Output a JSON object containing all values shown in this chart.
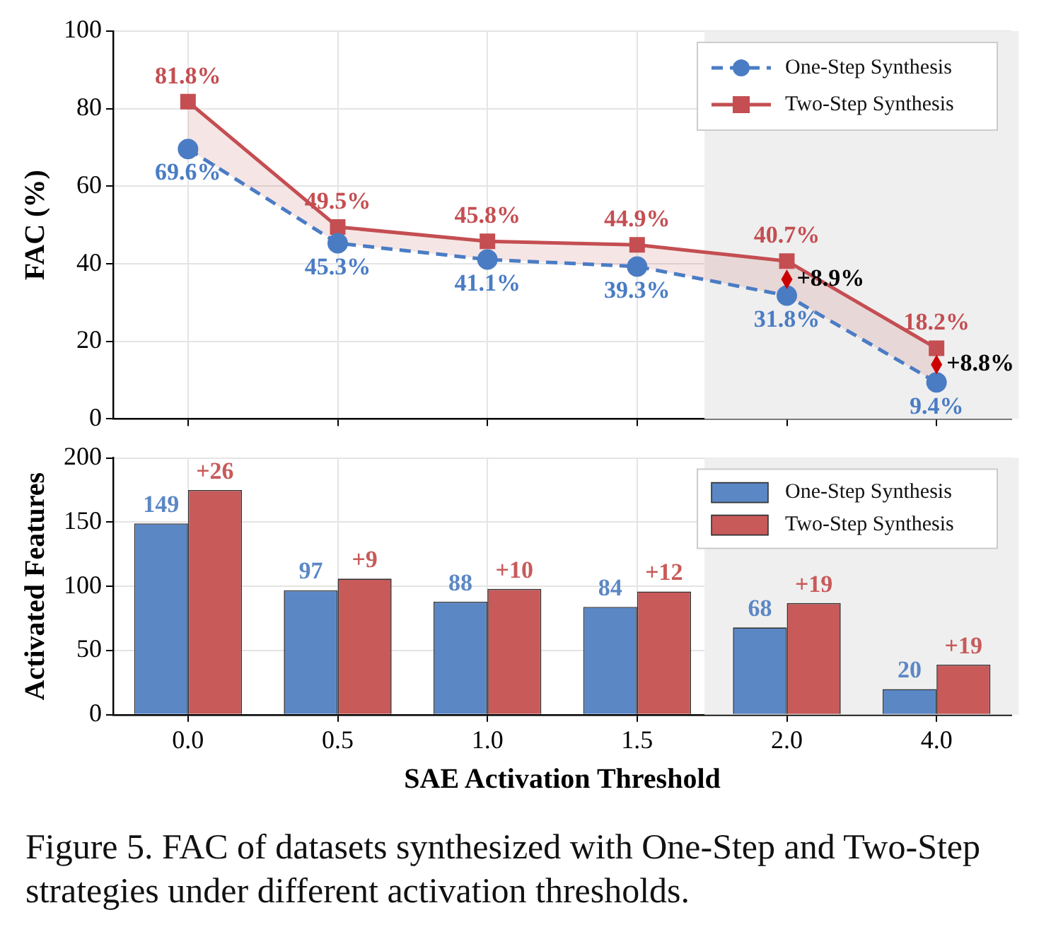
{
  "chart_data": [
    {
      "type": "line",
      "ylabel": "FAC (%)",
      "categories": [
        "0.0",
        "0.5",
        "1.0",
        "1.5",
        "2.0",
        "4.0"
      ],
      "series": [
        {
          "name": "One-Step Synthesis",
          "color": "#4a7cc4",
          "values": [
            69.6,
            45.3,
            41.1,
            39.3,
            31.8,
            9.4
          ],
          "value_labels": [
            "69.6%",
            "45.3%",
            "41.1%",
            "39.3%",
            "31.8%",
            "9.4%"
          ],
          "marker": "circle",
          "line_style": "dashed"
        },
        {
          "name": "Two-Step Synthesis",
          "color": "#c44e52",
          "values": [
            81.8,
            49.5,
            45.8,
            44.9,
            40.7,
            18.2
          ],
          "value_labels": [
            "81.8%",
            "49.5%",
            "45.8%",
            "44.9%",
            "40.7%",
            "18.2%"
          ],
          "marker": "square",
          "line_style": "solid",
          "lower": [
            69.6,
            45.3,
            41.1,
            39.3,
            31.8,
            9.4
          ],
          "upper": [
            81.8,
            49.5,
            45.8,
            44.9,
            40.7,
            18.2
          ]
        }
      ],
      "ylim": [
        0,
        100
      ],
      "yticks": [
        0,
        20,
        40,
        60,
        80,
        100
      ],
      "grid": true,
      "legend": "top right",
      "tick_labels": "y",
      "bands": [
        {
          "axis": "x",
          "from": "2.0",
          "to": "4.0",
          "color": "#efefef"
        }
      ],
      "annotations": [
        {
          "text": "+8.9%",
          "x": "2.0",
          "y": 36
        },
        {
          "text": "+8.8%",
          "x": "4.0",
          "y": 14
        }
      ]
    },
    {
      "type": "bar",
      "ylabel": "Activated Features",
      "xlabel": "SAE Activation Threshold",
      "categories": [
        "0.0",
        "0.5",
        "1.0",
        "1.5",
        "2.0",
        "4.0"
      ],
      "series": [
        {
          "name": "One-Step Synthesis",
          "color": "#5b87c5",
          "values": [
            149,
            97,
            88,
            84,
            68,
            20
          ],
          "value_labels": [
            "149",
            "97",
            "88",
            "84",
            "68",
            "20"
          ]
        },
        {
          "name": "Two-Step Synthesis",
          "color": "#c85a5a",
          "values": [
            175,
            106,
            98,
            96,
            87,
            39
          ]
        }
      ],
      "ylim": [
        0,
        200
      ],
      "yticks": [
        0,
        50,
        100,
        150,
        200
      ],
      "grid": true,
      "legend": "top right",
      "bands": [
        {
          "axis": "x",
          "from": "2.0",
          "to": "4.0",
          "color": "#efefef"
        }
      ],
      "annotations": [
        {
          "text": "+26",
          "x": "0.0",
          "y": 175
        },
        {
          "text": "+9",
          "x": "0.5",
          "y": 106
        },
        {
          "text": "+10",
          "x": "1.0",
          "y": 98
        },
        {
          "text": "+12",
          "x": "1.5",
          "y": 96
        },
        {
          "text": "+19",
          "x": "2.0",
          "y": 87
        },
        {
          "text": "+19",
          "x": "4.0",
          "y": 39
        },
        "Figure 5. FAC of datasets synthesized with One-Step and Two-Step strategies under different activation thresholds."
      ]
    }
  ]
}
